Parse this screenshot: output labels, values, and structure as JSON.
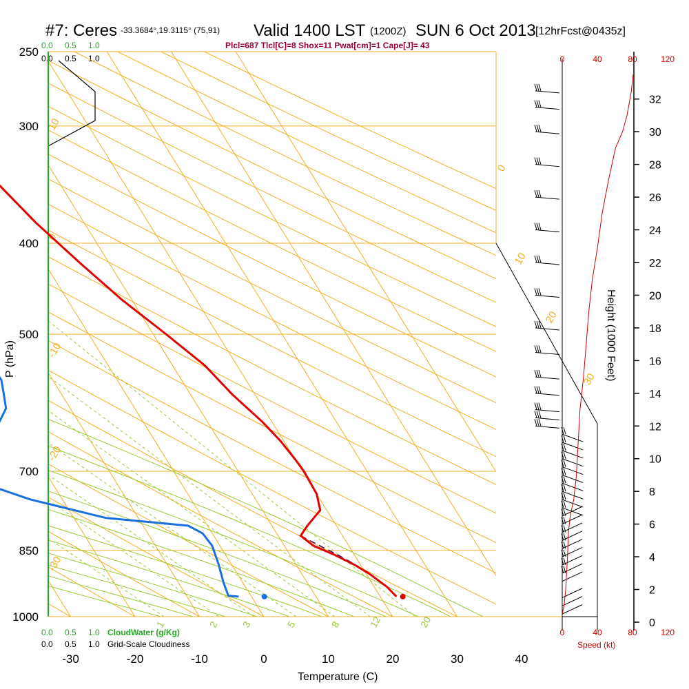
{
  "header": {
    "station": "#7: Ceres",
    "coords": "-33.3684°,19.3115° (75,91)",
    "valid": "Valid 1400 LST",
    "zulu": "(1200Z)",
    "date": "SUN 6 Oct 2013",
    "forecast": "[12hrFcst@0435z]",
    "params": "Plcl=687 Tlcl[C]=8 Shox=11 Pwat[cm]=1 Cape[J]= 43"
  },
  "colors": {
    "temperature": "#e00000",
    "dewpoint": "#1a6fe0",
    "parcel": "#4a0060",
    "isotherm": "#f0b020",
    "mixing_ratio": "#99cc33",
    "speed": "#cc0000",
    "cloud": "#22aa22",
    "params": "#99003a"
  },
  "chart_data": {
    "type": "line",
    "xlabel": "Temperature (C)",
    "ylabel": "P (hPa)",
    "y2label": "Height (1000 Feet)",
    "x_ticks": [
      "-30",
      "-20",
      "-10",
      "0",
      "10",
      "20",
      "30",
      "40"
    ],
    "pressure_ticks": [
      "250",
      "300",
      "400",
      "500",
      "700",
      "850",
      "1000"
    ],
    "height_ticks": [
      "0",
      "2",
      "4",
      "6",
      "8",
      "10",
      "12",
      "14",
      "16",
      "18",
      "20",
      "22",
      "24",
      "26",
      "28",
      "30",
      "32"
    ],
    "isotherm_labels": [
      "10",
      "0",
      "-10",
      "-20",
      "-30",
      "0",
      "10",
      "20",
      "30"
    ],
    "mixing_ratio_labels": [
      "1",
      "2",
      "3",
      "5",
      "8",
      "12",
      "20"
    ],
    "speed_ticks": [
      "0",
      "40",
      "80",
      "120"
    ],
    "speed_label": "Speed (kt)",
    "cloud_ticks": [
      "0.0",
      "0.5",
      "1.0"
    ],
    "cloudwater_label": "CloudWater (g/Kg)",
    "cloudiness_label": "Grid-Scale Cloudiness",
    "series": [
      {
        "name": "Temperature",
        "values": [
          [
            -6,
            250
          ],
          [
            -5.5,
            270
          ],
          [
            -3,
            300
          ],
          [
            0,
            340
          ],
          [
            2.5,
            380
          ],
          [
            5.5,
            420
          ],
          [
            8.5,
            460
          ],
          [
            12,
            500
          ],
          [
            15,
            540
          ],
          [
            16.5,
            580
          ],
          [
            18.5,
            620
          ],
          [
            19.5,
            650
          ],
          [
            20,
            680
          ],
          [
            20.2,
            700
          ],
          [
            20,
            740
          ],
          [
            19,
            770
          ],
          [
            15.5,
            800
          ],
          [
            13.5,
            820
          ],
          [
            14.5,
            840
          ],
          [
            17,
            860
          ],
          [
            19,
            880
          ],
          [
            20.5,
            900
          ],
          [
            22,
            930
          ],
          [
            22.5,
            952
          ]
        ]
      },
      {
        "name": "Dewpoint",
        "values": [
          [
            -24,
            255
          ],
          [
            -23,
            270
          ],
          [
            -22,
            300
          ],
          [
            -19,
            320
          ],
          [
            -18.5,
            330
          ],
          [
            -18,
            345
          ],
          [
            -20,
            360
          ],
          [
            -22,
            385
          ],
          [
            -24,
            415
          ],
          [
            -23.5,
            440
          ],
          [
            -21.5,
            480
          ],
          [
            -19.5,
            510
          ],
          [
            -18,
            530
          ],
          [
            -18,
            560
          ],
          [
            -19,
            580
          ],
          [
            -20,
            600
          ],
          [
            -24,
            635
          ],
          [
            -30,
            670
          ],
          [
            -35,
            700
          ],
          [
            -33,
            710
          ],
          [
            -25,
            750
          ],
          [
            -15,
            785
          ],
          [
            -3,
            800
          ],
          [
            -1.5,
            815
          ],
          [
            -1.2,
            840
          ],
          [
            -2,
            880
          ],
          [
            -3,
            920
          ],
          [
            -3.5,
            950
          ],
          [
            -2,
            952
          ]
        ]
      },
      {
        "name": "Parcel",
        "values": [
          [
            13.5,
            820
          ],
          [
            15.5,
            840
          ],
          [
            17.5,
            860
          ],
          [
            19.2,
            880
          ],
          [
            20.5,
            900
          ],
          [
            21.8,
            925
          ],
          [
            22.5,
            952
          ]
        ]
      }
    ],
    "surface_temperature": 23.5,
    "surface_dewpoint": 2,
    "surface_pressure": 952,
    "speed_profile_kt": [
      [
        0,
        0.5
      ],
      [
        2,
        1
      ],
      [
        4,
        2
      ],
      [
        5,
        3
      ],
      [
        6,
        4
      ],
      [
        7,
        5.5
      ],
      [
        9,
        6.5
      ],
      [
        13,
        7.5
      ],
      [
        16,
        9
      ],
      [
        18,
        11
      ],
      [
        20,
        13
      ],
      [
        24,
        15
      ],
      [
        27,
        17
      ],
      [
        30,
        19
      ],
      [
        34,
        21
      ],
      [
        40,
        23
      ],
      [
        45,
        25
      ],
      [
        52,
        27
      ],
      [
        60,
        29
      ],
      [
        68,
        30
      ],
      [
        73,
        31
      ],
      [
        78,
        32.5
      ],
      [
        80,
        33.5
      ]
    ],
    "wind_barb_heights_kft": [
      0.5,
      1,
      1.5,
      2.5,
      3,
      3.5,
      4,
      4.5,
      5,
      5.5,
      6,
      6.5,
      7,
      7.5,
      8,
      8.5,
      9,
      9.5,
      10,
      10.5,
      11,
      11.5,
      12,
      12.5,
      13,
      14,
      15,
      16.5,
      18,
      20,
      22,
      24,
      26,
      28,
      30,
      31.5,
      32.5
    ]
  }
}
